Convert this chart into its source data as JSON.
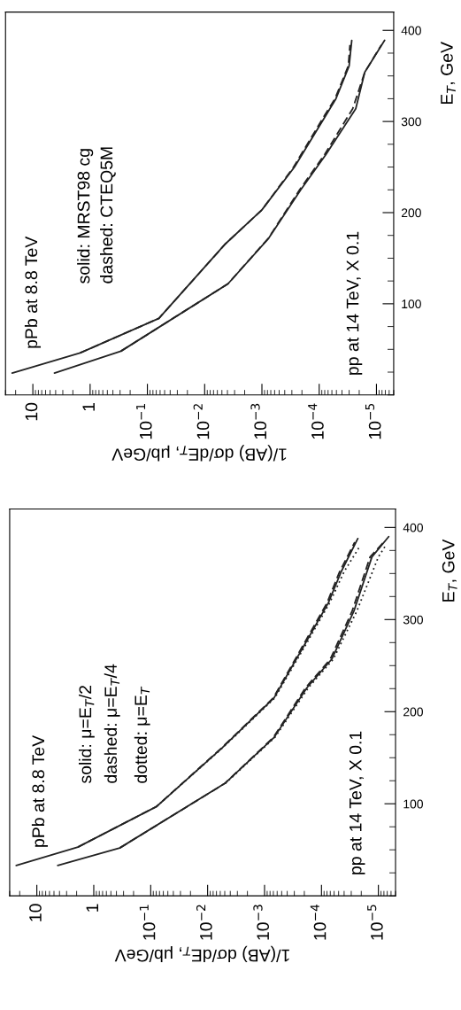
{
  "chart_data": [
    {
      "type": "line",
      "ylabel": "E$_{T}$, GeV",
      "xlabel": "1/(AB) dσ/dE$_{T}$, μb/GeV",
      "log": "x",
      "ylim": [
        0,
        420
      ],
      "yticks": [
        100,
        200,
        300,
        400
      ],
      "xlim": [
        30,
        5e-06
      ],
      "xticks": [
        {
          "value": 10,
          "label": "10"
        },
        {
          "value": 1,
          "label": "1"
        },
        {
          "value": 0.1,
          "label": "10$^{−1}$"
        },
        {
          "value": 0.01,
          "label": "10$^{−2}$"
        },
        {
          "value": 0.001,
          "label": "10$^{−3}$"
        },
        {
          "value": 0.0001,
          "label": "10$^{−4}$"
        },
        {
          "value": 1e-05,
          "label": "10$^{−5}$"
        }
      ],
      "annotations": [
        "pPb at 8.8 TeV",
        "solid: MRST98 cg",
        "dashed: CTEQ5M",
        "pp at 14 TeV, X 0.1"
      ],
      "series": [
        {
          "color": "#222222",
          "line_style": "solid",
          "values": [
            24,
            46,
            84,
            166,
            203,
            250,
            307,
            325,
            361,
            389
          ],
          "x": [
            23,
            1.5,
            0.063,
            0.0043,
            0.001,
            0.00027,
            7.6e-05,
            5.1e-05,
            3e-05,
            2.7e-05
          ]
        },
        {
          "color": "#222222",
          "line_style": "dashed",
          "values": [
            46,
            84,
            166,
            203,
            250,
            307,
            325,
            361,
            384
          ],
          "x": [
            1.5,
            0.063,
            0.0043,
            0.001,
            0.00028,
            8e-05,
            5.3e-05,
            3.1e-05,
            2.9e-05
          ]
        },
        {
          "color": "#222222",
          "line_style": "solid",
          "values": [
            24,
            48,
            122,
            172,
            225,
            264,
            314,
            354,
            389
          ],
          "x": [
            4.2,
            0.29,
            0.0039,
            0.00076,
            0.00021,
            7.6e-05,
            2.3e-05,
            1.6e-05,
            7.2e-06
          ]
        },
        {
          "color": "#222222",
          "line_style": "dashed",
          "values": [
            48,
            122,
            172,
            225,
            264,
            314,
            354,
            384
          ],
          "x": [
            0.29,
            0.0039,
            0.00077,
            0.00022,
            8e-05,
            2.6e-05,
            1.6e-05,
            8.2e-06
          ]
        }
      ]
    },
    {
      "type": "line",
      "ylabel": "E$_{T}$, GeV",
      "xlabel": "1/(AB) dσ/dE$_{T}$, μb/GeV",
      "log": "x",
      "ylim": [
        0,
        420
      ],
      "yticks": [
        100,
        200,
        300,
        400
      ],
      "xlim": [
        30,
        5e-06
      ],
      "xticks": [
        {
          "value": 10,
          "label": "10"
        },
        {
          "value": 1,
          "label": "1"
        },
        {
          "value": 0.1,
          "label": "10$^{−1}$"
        },
        {
          "value": 0.01,
          "label": "10$^{−2}$"
        },
        {
          "value": 0.001,
          "label": "10$^{−3}$"
        },
        {
          "value": 0.0001,
          "label": "10$^{−4}$"
        },
        {
          "value": 1e-05,
          "label": "10$^{−5}$"
        }
      ],
      "annotations": [
        "pPb at 8.8 TeV",
        "solid: μ=E$_{T}$/2",
        "dashed: μ=E$_{T}$/4",
        "dotted: μ=E$_{T}$",
        "pp at 14 TeV, X 0.1"
      ],
      "series": [
        {
          "color": "#222222",
          "line_style": "solid",
          "values": [
            33,
            53,
            97,
            161,
            215,
            270,
            318,
            352,
            388
          ],
          "x": [
            23,
            1.9,
            0.079,
            0.0055,
            0.00068,
            0.00021,
            7.6e-05,
            4.5e-05,
            2.3e-05
          ]
        },
        {
          "color": "#222222",
          "line_style": "dashed",
          "values": [
            53,
            97,
            161,
            215,
            270,
            318,
            352,
            384
          ],
          "x": [
            1.9,
            0.079,
            0.0056,
            0.0007,
            0.00022,
            8e-05,
            4.8e-05,
            2.6e-05
          ]
        },
        {
          "color": "#222222",
          "line_style": "dotted",
          "values": [
            97,
            161,
            215,
            270,
            318,
            352,
            380
          ],
          "x": [
            0.079,
            0.0054,
            0.00066,
            0.0002,
            7.2e-05,
            4e-05,
            2.1e-05
          ]
        },
        {
          "color": "#222222",
          "line_style": "solid",
          "values": [
            33,
            52,
            122,
            172,
            226,
            257,
            309,
            368,
            390
          ],
          "x": [
            4.3,
            0.35,
            0.005,
            0.00068,
            0.00018,
            6.6e-05,
            2.7e-05,
            1.3e-05,
            6.6e-06
          ]
        },
        {
          "color": "#222222",
          "line_style": "dashed",
          "values": [
            52,
            122,
            172,
            226,
            257,
            309,
            368,
            385
          ],
          "x": [
            0.35,
            0.005,
            0.0007,
            0.00019,
            7e-05,
            2.9e-05,
            1.4e-05,
            7.8e-06
          ]
        },
        {
          "color": "#222222",
          "line_style": "dotted",
          "values": [
            122,
            172,
            226,
            257,
            309,
            368,
            382
          ],
          "x": [
            0.0049,
            0.00066,
            0.00017,
            6.2e-05,
            2.4e-05,
            1e-05,
            7.2e-06
          ]
        }
      ]
    }
  ]
}
